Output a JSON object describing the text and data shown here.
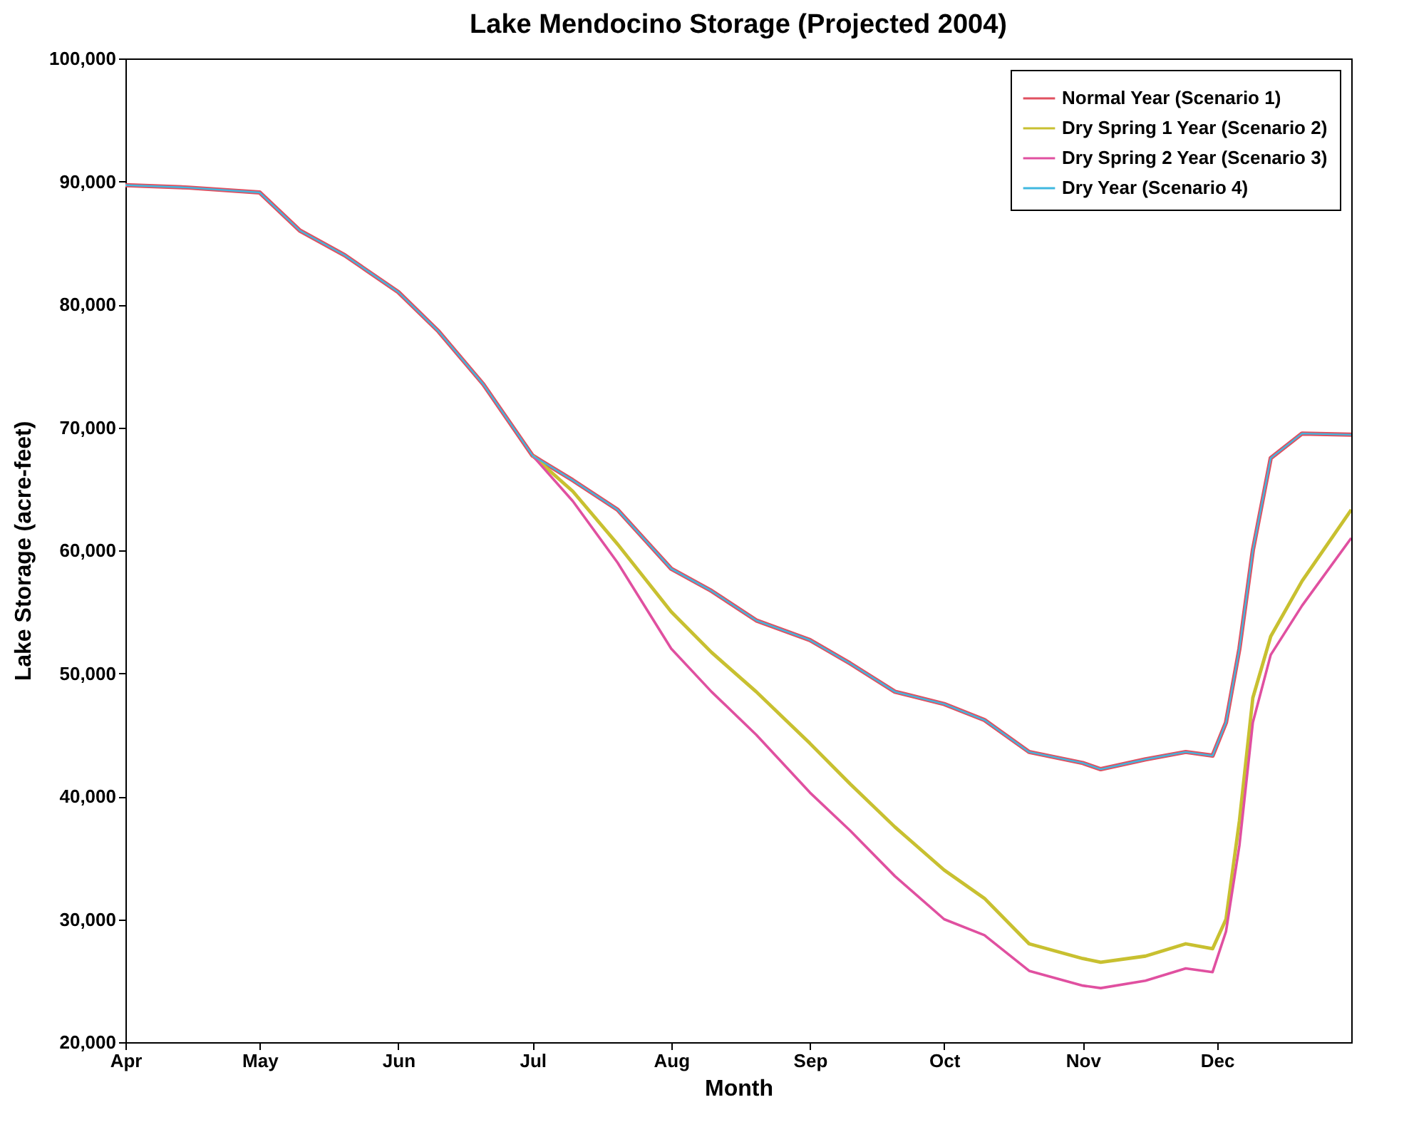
{
  "chart_data": {
    "type": "line",
    "title": "Lake Mendocino Storage (Projected 2004)",
    "xlabel": "Month",
    "ylabel": "Lake Storage (acre-feet)",
    "x": [
      "2004-04-01",
      "2004-04-15",
      "2004-05-01",
      "2004-05-10",
      "2004-05-20",
      "2004-06-01",
      "2004-06-10",
      "2004-06-20",
      "2004-07-01",
      "2004-07-10",
      "2004-07-20",
      "2004-08-01",
      "2004-08-10",
      "2004-08-20",
      "2004-09-01",
      "2004-09-10",
      "2004-09-20",
      "2004-10-01",
      "2004-10-10",
      "2004-10-20",
      "2004-11-01",
      "2004-11-05",
      "2004-11-15",
      "2004-11-24",
      "2004-11-30",
      "2004-12-03",
      "2004-12-06",
      "2004-12-09",
      "2004-12-13",
      "2004-12-20",
      "2004-12-31"
    ],
    "series": [
      {
        "name": "Normal Year (Scenario 1)",
        "color": "#e05060",
        "values": [
          89700,
          89500,
          89100,
          86000,
          84000,
          81000,
          77800,
          73500,
          67700,
          65700,
          63300,
          58500,
          56700,
          54300,
          52700,
          50800,
          48500,
          47500,
          46200,
          43600,
          42700,
          42200,
          43000,
          43600,
          43300,
          46000,
          52000,
          60000,
          67500,
          69500,
          69400
        ]
      },
      {
        "name": "Dry Spring 1 Year (Scenario 2)",
        "color": "#c8c030",
        "values": [
          null,
          null,
          null,
          null,
          null,
          null,
          null,
          null,
          67700,
          64800,
          60500,
          55000,
          51700,
          48500,
          44300,
          41000,
          37500,
          34000,
          31700,
          28000,
          26800,
          26500,
          27000,
          28000,
          27600,
          30000,
          38000,
          48000,
          53000,
          57500,
          63300
        ]
      },
      {
        "name": "Dry Spring 2 Year (Scenario 3)",
        "color": "#e050a0",
        "values": [
          null,
          null,
          null,
          null,
          null,
          null,
          null,
          null,
          67700,
          64000,
          59000,
          52000,
          48500,
          45000,
          40300,
          37200,
          33500,
          30000,
          28700,
          25800,
          24600,
          24400,
          25000,
          26000,
          25700,
          29000,
          36000,
          46000,
          51500,
          55500,
          61000
        ]
      },
      {
        "name": "Dry Year (Scenario 4)",
        "color": "#40b8e0",
        "values": [
          89700,
          89500,
          89100,
          86000,
          84000,
          81000,
          77800,
          73500,
          67700,
          65700,
          63300,
          58500,
          56700,
          54300,
          52700,
          50800,
          48500,
          47500,
          46200,
          43600,
          42700,
          42200,
          43000,
          43600,
          43300,
          46000,
          52000,
          60000,
          67500,
          69500,
          69400
        ]
      }
    ],
    "xlim": [
      "2004-04-01",
      "2004-12-31"
    ],
    "xticks": [
      {
        "value": "2004-04-01",
        "label": "Apr"
      },
      {
        "value": "2004-05-01",
        "label": "May"
      },
      {
        "value": "2004-06-01",
        "label": "Jun"
      },
      {
        "value": "2004-07-01",
        "label": "Jul"
      },
      {
        "value": "2004-08-01",
        "label": "Aug"
      },
      {
        "value": "2004-09-01",
        "label": "Sep"
      },
      {
        "value": "2004-10-01",
        "label": "Oct"
      },
      {
        "value": "2004-11-01",
        "label": "Nov"
      },
      {
        "value": "2004-12-01",
        "label": "Dec"
      }
    ],
    "ylim": [
      20000,
      100000
    ],
    "yticks": [
      {
        "value": 20000,
        "label": "20,000"
      },
      {
        "value": 30000,
        "label": "30,000"
      },
      {
        "value": 40000,
        "label": "40,000"
      },
      {
        "value": 50000,
        "label": "50,000"
      },
      {
        "value": 60000,
        "label": "60,000"
      },
      {
        "value": 70000,
        "label": "70,000"
      },
      {
        "value": 80000,
        "label": "80,000"
      },
      {
        "value": 90000,
        "label": "90,000"
      },
      {
        "value": 100000,
        "label": "100,000"
      }
    ],
    "grid": false,
    "legend": "top right",
    "marker": "none",
    "line_style": "solid"
  }
}
